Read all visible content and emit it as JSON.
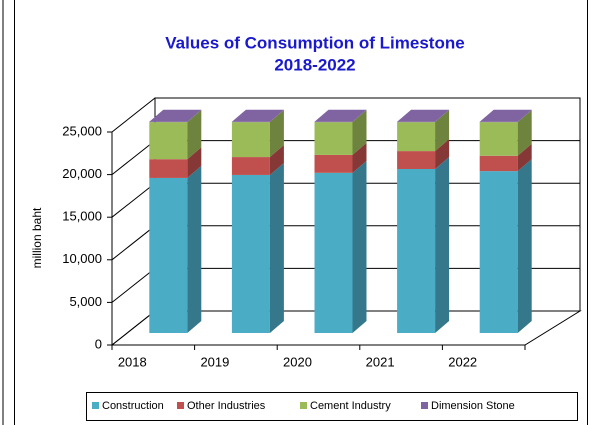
{
  "chart_data": {
    "type": "bar3d_stacked",
    "title": "Values of Consumption of Limestone",
    "subtitle": "2018-2022",
    "y_label": "million baht",
    "categories": [
      "2018",
      "2019",
      "2020",
      "2021",
      "2022"
    ],
    "series": [
      {
        "name": "Construction",
        "color": "#4bacc6",
        "values": [
          18200,
          18550,
          18800,
          19250,
          19000
        ]
      },
      {
        "name": "Other Industries",
        "color": "#c0504d",
        "values": [
          2200,
          2100,
          2100,
          2100,
          1800
        ]
      },
      {
        "name": "Cement Industry",
        "color": "#9bbb59",
        "values": [
          4350,
          4100,
          3850,
          3400,
          3950
        ]
      },
      {
        "name": "Dimension Stone",
        "color": "#8064a2",
        "values": [
          50,
          50,
          50,
          50,
          50
        ]
      }
    ],
    "ylim": [
      0,
      25000
    ],
    "yticks": [
      0,
      {
        "value": 5000,
        "label": "5,000"
      },
      {
        "value": 10000,
        "label": "10,000"
      },
      {
        "value": 15000,
        "label": "15,000"
      },
      {
        "value": 20000,
        "label": "20,000"
      },
      {
        "value": 25000,
        "label": "25,000"
      }
    ],
    "grid": true,
    "legend": "bottom"
  }
}
